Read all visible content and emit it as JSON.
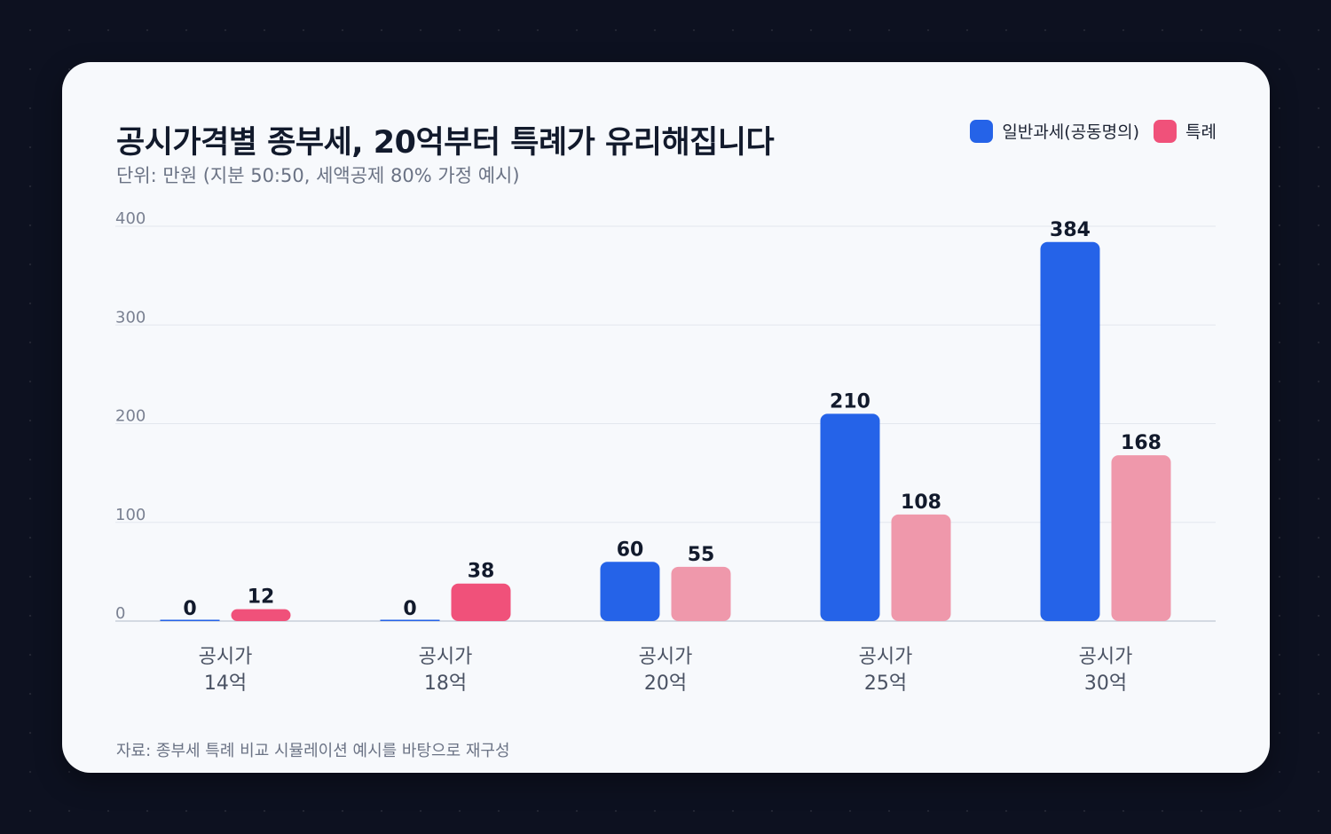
{
  "chart_data": {
    "type": "bar",
    "title": "공시가격별 종부세, 20억부터 특례가 유리해집니다",
    "subtitle": "단위: 만원 (지분 50:50, 세액공제 80% 가정 예시)",
    "categories": [
      [
        "공시가",
        "14억"
      ],
      [
        "공시가",
        "18억"
      ],
      [
        "공시가",
        "20억"
      ],
      [
        "공시가",
        "25억"
      ],
      [
        "공시가",
        "30억"
      ]
    ],
    "series": [
      {
        "name": "일반과세(공동명의)",
        "color": "#2563e8",
        "values": [
          0,
          0,
          60,
          210,
          384
        ]
      },
      {
        "name": "특례",
        "color": "#f0517a",
        "values": [
          12,
          38,
          55,
          108,
          168
        ]
      }
    ],
    "ylim": [
      0,
      400
    ],
    "yticks": [
      0,
      100,
      200,
      300,
      400
    ],
    "grid": true,
    "legend_position": "top-right",
    "source": "자료: 종부세 특례 비교 시뮬레이션 예시를 바탕으로 재구성"
  }
}
